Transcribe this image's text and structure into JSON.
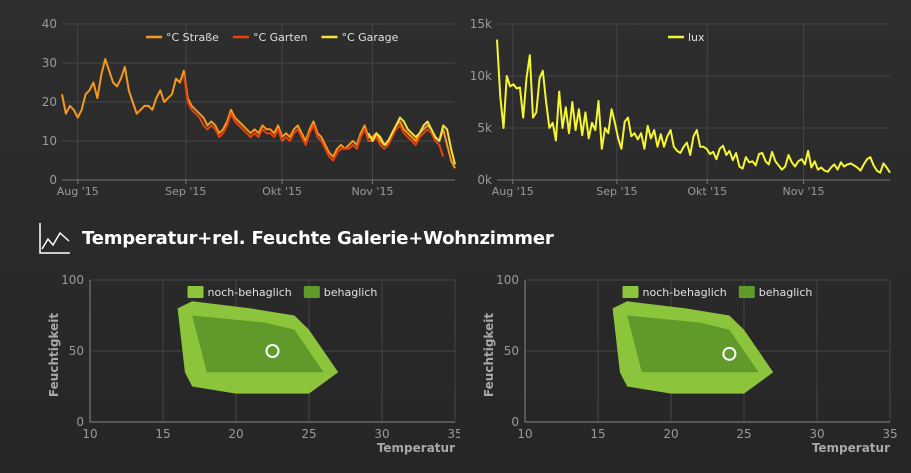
{
  "colors": {
    "strasse": "#f39a1e",
    "garten": "#e8420e",
    "garage": "#f5e23a",
    "lux": "#f5f534",
    "noch_behaglich": "#8cc43c",
    "behaglich": "#5f9a2a",
    "grid": "#454545",
    "axis_text": "#9a9a9a"
  },
  "section": {
    "title": "Temperatur+rel. Feuchte Galerie+Wohnzimmer",
    "icon": "line-chart-icon"
  },
  "chart_data": [
    {
      "type": "line",
      "id": "temperature",
      "title": "",
      "xlabel": "",
      "ylabel": "",
      "ylim": [
        0,
        40
      ],
      "yticks": [
        "0",
        "10",
        "20",
        "30",
        "40"
      ],
      "xticks": [
        "Aug '15",
        "Sep '15",
        "Okt '15",
        "Nov '15"
      ],
      "legend_position": "top-center",
      "grid": true,
      "series": [
        {
          "name": "°C Straße",
          "color_key": "strasse",
          "values": [
            22,
            17,
            19,
            18,
            16,
            18,
            22,
            23,
            25,
            21,
            27,
            31,
            28,
            25,
            24,
            26,
            29,
            23,
            20,
            17,
            18,
            19,
            19,
            18,
            21,
            23,
            20,
            21,
            22,
            26,
            25,
            28,
            21,
            19,
            18,
            17,
            16,
            14,
            15,
            14,
            12,
            13,
            15,
            18,
            16,
            15,
            14,
            13,
            12,
            13,
            12,
            14,
            13,
            13,
            12,
            14,
            11,
            12,
            11,
            13,
            14,
            12,
            10,
            13,
            15,
            12,
            11,
            9,
            7,
            6,
            8,
            9,
            8,
            9,
            10,
            9,
            12,
            14,
            11,
            11,
            12,
            10,
            9,
            9,
            12,
            14,
            15,
            13,
            12,
            11,
            10,
            12,
            13,
            14,
            13,
            11,
            10,
            13,
            9,
            5,
            3
          ]
        },
        {
          "name": "°C Garten",
          "color_key": "garten",
          "values": [
            null,
            null,
            null,
            null,
            null,
            null,
            null,
            null,
            null,
            null,
            null,
            null,
            null,
            null,
            null,
            null,
            null,
            null,
            null,
            null,
            null,
            null,
            null,
            null,
            null,
            null,
            null,
            null,
            null,
            null,
            null,
            27,
            20,
            18,
            17,
            16,
            14,
            13,
            14,
            13,
            11,
            12,
            14,
            17,
            15,
            14,
            13,
            12,
            11,
            12,
            11,
            13,
            12,
            12,
            11,
            13,
            10,
            11,
            10,
            12,
            13,
            11,
            9,
            12,
            14,
            11,
            10,
            8,
            6,
            5,
            7,
            8,
            8,
            8,
            9,
            8,
            11,
            13,
            10,
            10,
            11,
            9,
            8,
            9,
            11,
            13,
            14,
            12,
            11,
            10,
            9,
            11,
            12,
            13,
            12,
            10,
            9,
            6,
            null,
            null,
            null
          ]
        },
        {
          "name": "°C Garage",
          "color_key": "garage",
          "values": [
            null,
            null,
            null,
            null,
            null,
            null,
            null,
            null,
            null,
            null,
            null,
            null,
            null,
            null,
            null,
            null,
            null,
            null,
            null,
            null,
            null,
            null,
            null,
            null,
            null,
            null,
            null,
            null,
            null,
            null,
            null,
            null,
            null,
            null,
            null,
            null,
            null,
            null,
            null,
            null,
            null,
            null,
            null,
            null,
            null,
            null,
            null,
            null,
            null,
            null,
            null,
            null,
            null,
            null,
            null,
            null,
            null,
            null,
            null,
            null,
            null,
            null,
            null,
            null,
            null,
            null,
            null,
            null,
            null,
            null,
            null,
            null,
            null,
            null,
            null,
            null,
            null,
            null,
            12,
            10,
            12,
            11,
            9,
            10,
            12,
            14,
            16,
            15,
            13,
            12,
            11,
            12,
            14,
            15,
            13,
            11,
            10,
            14,
            13,
            8,
            4
          ]
        }
      ]
    },
    {
      "type": "line",
      "id": "lux",
      "title": "",
      "xlabel": "",
      "ylabel": "",
      "ylim": [
        0,
        15000
      ],
      "yticks": [
        "0k",
        "5k",
        "10k",
        "15k"
      ],
      "xticks": [
        "Aug '15",
        "Sep '15",
        "Okt '15",
        "Nov '15"
      ],
      "legend_position": "top-center",
      "grid": true,
      "series": [
        {
          "name": "lux",
          "color_key": "lux",
          "values": [
            13500,
            8000,
            5000,
            10000,
            9000,
            9200,
            8800,
            8900,
            6000,
            9800,
            12000,
            6000,
            6500,
            9800,
            10500,
            7500,
            5000,
            5500,
            3800,
            8500,
            5000,
            7000,
            4500,
            7500,
            4800,
            6800,
            4300,
            6500,
            4000,
            5500,
            4800,
            7600,
            3000,
            5000,
            4500,
            6800,
            5500,
            4000,
            3000,
            5600,
            6000,
            4200,
            4500,
            3900,
            4500,
            3000,
            5200,
            4000,
            4800,
            3200,
            4400,
            3200,
            4200,
            4800,
            3200,
            2800,
            2600,
            3200,
            3600,
            2400,
            4200,
            4800,
            3200,
            3200,
            3000,
            2500,
            2700,
            2000,
            3000,
            3300,
            2400,
            2800,
            1900,
            2600,
            1300,
            1100,
            2200,
            1700,
            1800,
            1400,
            2500,
            2600,
            1800,
            1500,
            2700,
            1800,
            1400,
            1000,
            1300,
            2400,
            1700,
            1300,
            1800,
            2000,
            1500,
            2800,
            1200,
            1800,
            1000,
            1200,
            900,
            800,
            1200,
            1500,
            1000,
            1700,
            1300,
            1500,
            1600,
            1400,
            1200,
            900,
            1500,
            2000,
            2200,
            1400,
            900,
            700,
            1600,
            1200,
            700
          ]
        }
      ]
    },
    {
      "type": "scatter",
      "id": "comfort-left",
      "title": "",
      "xlabel": "Temperatur",
      "ylabel": "Feuchtigkeit",
      "xlim": [
        10,
        35
      ],
      "ylim": [
        0,
        100
      ],
      "xticks": [
        "10",
        "15",
        "20",
        "25",
        "30",
        "35"
      ],
      "yticks": [
        "0",
        "50",
        "100"
      ],
      "legend_position": "top-center",
      "grid": true,
      "areas": [
        {
          "name": "noch-behaglich",
          "color_key": "noch_behaglich",
          "points": [
            [
              16,
              80
            ],
            [
              17,
              85
            ],
            [
              21,
              80
            ],
            [
              24,
              75
            ],
            [
              25,
              65
            ],
            [
              27,
              35
            ],
            [
              25,
              20
            ],
            [
              20,
              20
            ],
            [
              17,
              25
            ],
            [
              16.5,
              35
            ]
          ]
        },
        {
          "name": "behaglich",
          "color_key": "behaglich",
          "points": [
            [
              17,
              75
            ],
            [
              22,
              70
            ],
            [
              24,
              65
            ],
            [
              26,
              35
            ],
            [
              18,
              35
            ]
          ]
        }
      ],
      "points": [
        [
          22.5,
          50
        ]
      ]
    },
    {
      "type": "scatter",
      "id": "comfort-right",
      "title": "",
      "xlabel": "Temperatur",
      "ylabel": "Feuchtigkeit",
      "xlim": [
        10,
        35
      ],
      "ylim": [
        0,
        100
      ],
      "xticks": [
        "10",
        "15",
        "20",
        "25",
        "30",
        "35"
      ],
      "yticks": [
        "0",
        "50",
        "100"
      ],
      "legend_position": "top-center",
      "grid": true,
      "areas": [
        {
          "name": "noch-behaglich",
          "color_key": "noch_behaglich",
          "points": [
            [
              16,
              80
            ],
            [
              17,
              85
            ],
            [
              21,
              80
            ],
            [
              24,
              75
            ],
            [
              25,
              65
            ],
            [
              27,
              35
            ],
            [
              25,
              20
            ],
            [
              20,
              20
            ],
            [
              17,
              25
            ],
            [
              16.5,
              35
            ]
          ]
        },
        {
          "name": "behaglich",
          "color_key": "behaglich",
          "points": [
            [
              17,
              75
            ],
            [
              22,
              70
            ],
            [
              24,
              65
            ],
            [
              26,
              35
            ],
            [
              18,
              35
            ]
          ]
        }
      ],
      "points": [
        [
          24,
          48
        ]
      ]
    }
  ]
}
